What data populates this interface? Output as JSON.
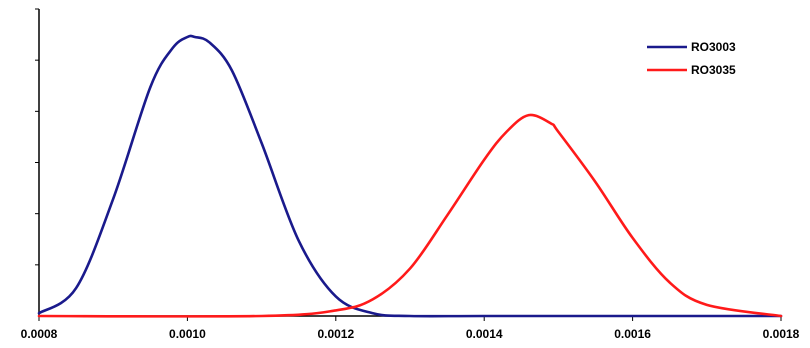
{
  "chart_data": {
    "type": "line",
    "title": "",
    "xlabel": "",
    "ylabel": "",
    "xlim": [
      0.0008,
      0.0018
    ],
    "ylim": [
      0,
      1
    ],
    "x_ticks": [
      "0.0008",
      "0.0010",
      "0.0012",
      "0.0014",
      "0.0016",
      "0.0018"
    ],
    "y_tick_count": 6,
    "grid": false,
    "legend_position": "top-right",
    "series": [
      {
        "name": "RO3003",
        "color": "#1a1a8c",
        "x": [
          0.0008,
          0.00085,
          0.0009,
          0.00095,
          0.00098,
          0.001,
          0.00101,
          0.00103,
          0.00106,
          0.0011,
          0.00115,
          0.0012,
          0.00125,
          0.0013,
          0.0014,
          0.0016,
          0.0018
        ],
        "y": [
          0.01,
          0.1,
          0.42,
          0.82,
          0.96,
          1.0,
          1.0,
          0.98,
          0.88,
          0.62,
          0.27,
          0.07,
          0.01,
          0.0,
          0.0,
          0.0,
          0.0
        ]
      },
      {
        "name": "RO3035",
        "color": "#ff1a1a",
        "x": [
          0.0008,
          0.0011,
          0.0012,
          0.00125,
          0.0013,
          0.00135,
          0.0014,
          0.00143,
          0.00146,
          0.00149,
          0.0015,
          0.00155,
          0.0016,
          0.00165,
          0.0017,
          0.0018
        ],
        "y": [
          0.0,
          0.0,
          0.02,
          0.06,
          0.17,
          0.36,
          0.56,
          0.66,
          0.72,
          0.69,
          0.66,
          0.48,
          0.28,
          0.12,
          0.04,
          0.0
        ]
      }
    ]
  }
}
